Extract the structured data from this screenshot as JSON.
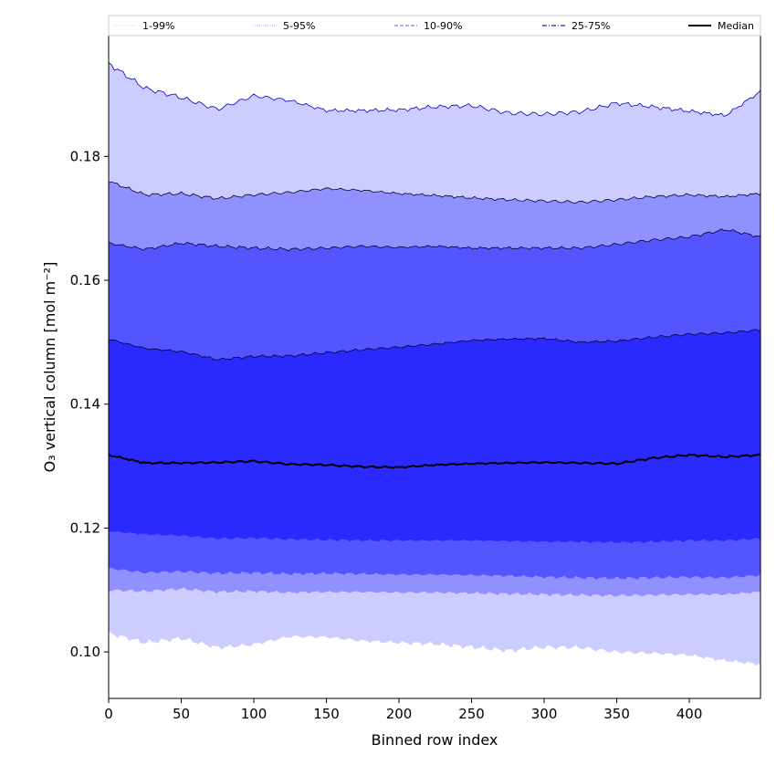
{
  "chart_data": {
    "type": "area",
    "xlabel": "Binned row index",
    "ylabel": "O₃ vertical column [mol m⁻²]",
    "xlim": [
      0,
      449
    ],
    "ylim": [
      0.0925,
      0.1995
    ],
    "xticks": [
      0,
      50,
      100,
      150,
      200,
      250,
      300,
      350,
      400
    ],
    "yticks": [
      0.1,
      0.12,
      0.14,
      0.16,
      0.18
    ],
    "ytick_labels": [
      "0.10",
      "0.12",
      "0.14",
      "0.16",
      "0.18"
    ],
    "x": [
      0,
      25,
      50,
      75,
      100,
      125,
      150,
      175,
      200,
      225,
      250,
      275,
      300,
      325,
      350,
      375,
      400,
      425,
      449
    ],
    "bands": [
      {
        "name": "1-99%",
        "color": "#ccccff",
        "line_style": "dotted",
        "lower": [
          0.103,
          0.1015,
          0.1022,
          0.1007,
          0.1012,
          0.1025,
          0.1024,
          0.1018,
          0.1015,
          0.1013,
          0.1008,
          0.1002,
          0.1008,
          0.1007,
          0.1,
          0.0998,
          0.0995,
          0.0986,
          0.098
        ],
        "upper": [
          0.195,
          0.191,
          0.1895,
          0.1876,
          0.1898,
          0.189,
          0.1874,
          0.1874,
          0.1875,
          0.188,
          0.1882,
          0.187,
          0.1868,
          0.1872,
          0.1886,
          0.188,
          0.1873,
          0.1866,
          0.1905
        ]
      },
      {
        "name": "5-95%",
        "color": "#9090ff",
        "line_style": "dotted",
        "lower": [
          0.11,
          0.1098,
          0.1102,
          0.1097,
          0.1098,
          0.1096,
          0.1097,
          0.1097,
          0.1096,
          0.1096,
          0.1095,
          0.1094,
          0.1093,
          0.1092,
          0.1091,
          0.1092,
          0.1093,
          0.1093,
          0.1097
        ],
        "upper": [
          0.176,
          0.1738,
          0.174,
          0.1732,
          0.1738,
          0.1742,
          0.1748,
          0.1745,
          0.174,
          0.1737,
          0.1733,
          0.173,
          0.1728,
          0.1726,
          0.173,
          0.1735,
          0.1738,
          0.1735,
          0.174
        ]
      },
      {
        "name": "10-90%",
        "color": "#5555ff",
        "line_style": "dashed",
        "lower": [
          0.1135,
          0.1128,
          0.113,
          0.1127,
          0.1128,
          0.1126,
          0.1127,
          0.1126,
          0.1125,
          0.1125,
          0.1124,
          0.1123,
          0.1121,
          0.112,
          0.1119,
          0.112,
          0.1121,
          0.112,
          0.1124
        ],
        "upper": [
          0.166,
          0.165,
          0.166,
          0.1655,
          0.1652,
          0.165,
          0.1652,
          0.1655,
          0.1653,
          0.1655,
          0.1652,
          0.1652,
          0.1652,
          0.1652,
          0.1658,
          0.1665,
          0.167,
          0.1682,
          0.167
        ]
      },
      {
        "name": "25-75%",
        "color": "#2a2aff",
        "line_style": "dashdot",
        "lower": [
          0.1195,
          0.119,
          0.1188,
          0.1183,
          0.1184,
          0.1182,
          0.1181,
          0.118,
          0.118,
          0.118,
          0.118,
          0.1179,
          0.1178,
          0.1178,
          0.1177,
          0.1178,
          0.118,
          0.118,
          0.1183
        ],
        "upper": [
          0.1505,
          0.149,
          0.1485,
          0.1472,
          0.1477,
          0.1478,
          0.1483,
          0.1488,
          0.1492,
          0.1497,
          0.1503,
          0.1505,
          0.1506,
          0.15,
          0.1502,
          0.1508,
          0.1513,
          0.1515,
          0.152
        ]
      }
    ],
    "median": {
      "name": "Median",
      "color": "#000000",
      "values": [
        0.1318,
        0.1305,
        0.1305,
        0.1306,
        0.1308,
        0.1303,
        0.1302,
        0.1299,
        0.1298,
        0.1302,
        0.1304,
        0.1305,
        0.1306,
        0.1305,
        0.1304,
        0.1313,
        0.1318,
        0.1315,
        0.1318
      ]
    },
    "legend": [
      "1-99%",
      "5-95%",
      "10-90%",
      "25-75%",
      "Median"
    ],
    "legend_position": "top"
  }
}
